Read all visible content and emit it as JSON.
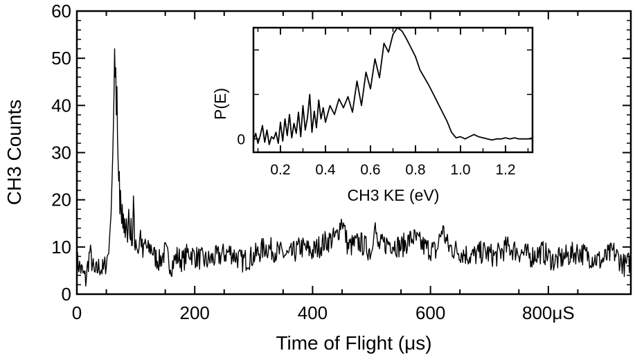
{
  "chart_data": [
    {
      "type": "line",
      "xlabel": "Time of Flight (μs)",
      "ylabel": "CH3 Counts",
      "xlim": [
        0,
        940
      ],
      "ylim": [
        0,
        60
      ],
      "x_ticks": [
        {
          "value": 0,
          "label": "0"
        },
        {
          "value": 200,
          "label": "200"
        },
        {
          "value": 400,
          "label": "400"
        },
        {
          "value": 600,
          "label": "600"
        },
        {
          "value": 800,
          "label": "800μS"
        }
      ],
      "y_ticks": [
        0,
        10,
        20,
        30,
        40,
        50,
        60
      ],
      "grid": false,
      "series": [
        {
          "x": [
            0,
            8,
            15,
            22,
            30,
            38,
            45,
            50,
            54,
            58,
            61,
            63,
            64,
            65,
            66,
            67,
            68,
            69,
            70,
            71,
            72,
            73,
            74,
            75,
            76,
            77,
            78,
            79,
            80,
            81,
            82,
            84,
            86,
            88,
            90,
            92,
            94,
            96,
            98,
            100,
            104,
            108,
            112,
            116,
            120,
            126,
            132,
            140,
            150,
            160,
            170,
            180,
            190,
            200,
            220,
            240,
            260,
            280,
            300,
            320,
            340,
            360,
            380,
            400,
            420,
            440,
            450,
            460,
            480,
            500,
            505,
            510,
            530,
            550,
            570,
            590,
            610,
            620,
            630,
            650,
            670,
            690,
            710,
            730,
            750,
            770,
            790,
            810,
            830,
            850,
            870,
            890,
            910,
            930,
            940
          ],
          "y": [
            7,
            5,
            3,
            9,
            4,
            6,
            5,
            7,
            9,
            17,
            30,
            42,
            52,
            46,
            48,
            38,
            44,
            33,
            28,
            24,
            26,
            17,
            22,
            18,
            15,
            19,
            14,
            17,
            13,
            16,
            12,
            16,
            11,
            18,
            12,
            14,
            11,
            20,
            10,
            12,
            9,
            13,
            8,
            11,
            9,
            10,
            8,
            7,
            9,
            6,
            8,
            7,
            9,
            8,
            7,
            8,
            9,
            7,
            8,
            10,
            9,
            8,
            10,
            9,
            11,
            12,
            16,
            10,
            11,
            9,
            16,
            10,
            11,
            10,
            12,
            10,
            9,
            14,
            10,
            9,
            8,
            9,
            8,
            10,
            9,
            8,
            9,
            7,
            8,
            9,
            8,
            7,
            9,
            6,
            7
          ]
        }
      ]
    },
    {
      "type": "line",
      "xlabel": "CH3 KE (eV)",
      "ylabel": "P(E)",
      "xlim": [
        0.08,
        1.32
      ],
      "ylim": [
        -0.12,
        1.0
      ],
      "x_ticks": [
        {
          "value": 0.2,
          "label": "0.2"
        },
        {
          "value": 0.4,
          "label": "0.4"
        },
        {
          "value": 0.6,
          "label": "0.6"
        },
        {
          "value": 0.8,
          "label": "0.8"
        },
        {
          "value": 1.0,
          "label": "1.0"
        },
        {
          "value": 1.2,
          "label": "1.2"
        }
      ],
      "y_ticks": [
        {
          "value": 0,
          "label": "0"
        }
      ],
      "series": [
        {
          "x": [
            0.08,
            0.09,
            0.1,
            0.11,
            0.12,
            0.13,
            0.14,
            0.15,
            0.16,
            0.17,
            0.18,
            0.19,
            0.2,
            0.21,
            0.22,
            0.23,
            0.24,
            0.25,
            0.26,
            0.27,
            0.28,
            0.29,
            0.3,
            0.31,
            0.32,
            0.33,
            0.34,
            0.35,
            0.36,
            0.37,
            0.38,
            0.39,
            0.4,
            0.42,
            0.44,
            0.46,
            0.48,
            0.5,
            0.52,
            0.54,
            0.56,
            0.58,
            0.6,
            0.62,
            0.64,
            0.66,
            0.68,
            0.7,
            0.72,
            0.74,
            0.76,
            0.78,
            0.8,
            0.82,
            0.84,
            0.86,
            0.88,
            0.9,
            0.92,
            0.94,
            0.96,
            0.98,
            1.0,
            1.02,
            1.04,
            1.06,
            1.08,
            1.1,
            1.12,
            1.14,
            1.16,
            1.18,
            1.2,
            1.22,
            1.24,
            1.26,
            1.28,
            1.3,
            1.32
          ],
          "y": [
            -0.02,
            0.05,
            -0.04,
            0.03,
            0.12,
            -0.03,
            0.08,
            -0.05,
            0.02,
            0.0,
            0.06,
            -0.04,
            0.15,
            -0.02,
            0.18,
            0.03,
            0.22,
            0.01,
            0.14,
            0.05,
            0.24,
            0.02,
            0.3,
            0.08,
            0.19,
            0.4,
            0.06,
            0.25,
            0.1,
            0.35,
            0.18,
            0.28,
            0.15,
            0.3,
            0.22,
            0.36,
            0.28,
            0.38,
            0.24,
            0.52,
            0.3,
            0.6,
            0.45,
            0.72,
            0.55,
            0.86,
            0.78,
            0.94,
            1.0,
            0.97,
            0.9,
            0.82,
            0.74,
            0.62,
            0.55,
            0.48,
            0.4,
            0.32,
            0.24,
            0.16,
            0.06,
            0.01,
            0.02,
            0.0,
            0.02,
            0.04,
            0.02,
            0.01,
            0.0,
            -0.01,
            0.0,
            0.0,
            0.01,
            0.0,
            0.01,
            0.0,
            0.0,
            0.0,
            0.01
          ]
        }
      ]
    }
  ]
}
